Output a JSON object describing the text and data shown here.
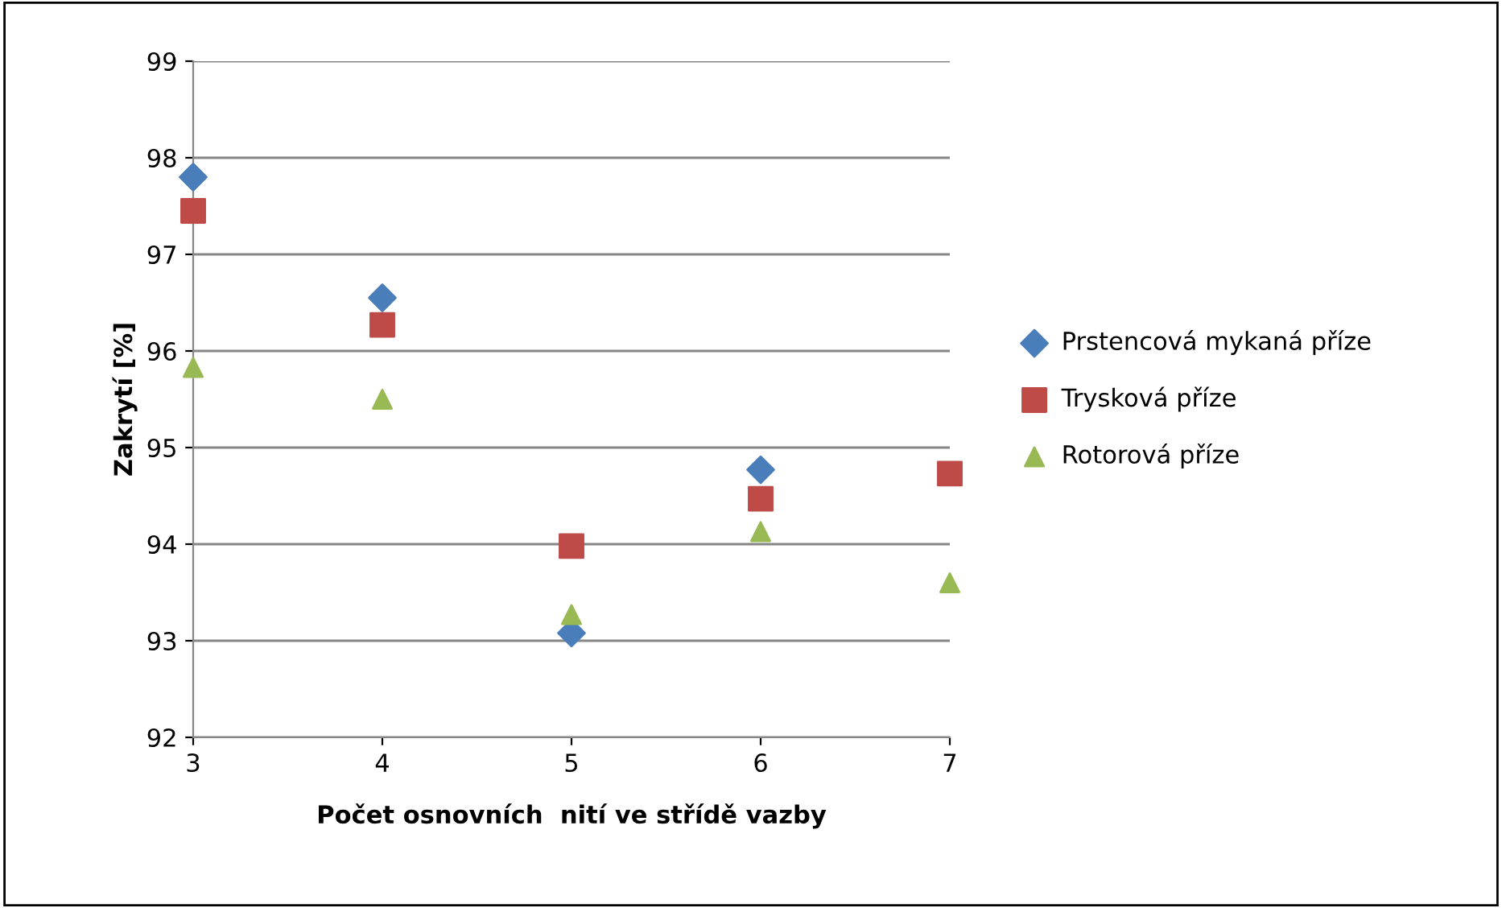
{
  "chart_data": {
    "type": "scatter",
    "xlabel": "Počet osnovních  nití ve střídě vazby",
    "ylabel": "Zakrytí [%]",
    "x": [
      3,
      4,
      5,
      6,
      7
    ],
    "series": [
      {
        "name": "Prstencová mykaná příze",
        "color": "#4a7ebb",
        "marker": "diamond",
        "values": [
          97.8,
          96.55,
          93.08,
          94.77,
          null
        ]
      },
      {
        "name": "Trysková příze",
        "color": "#be4b48",
        "marker": "square",
        "values": [
          97.45,
          96.27,
          93.98,
          94.47,
          94.73
        ]
      },
      {
        "name": "Rotorová příze",
        "color": "#98b954",
        "marker": "triangle",
        "values": [
          95.83,
          95.5,
          93.27,
          94.13,
          93.6
        ]
      }
    ],
    "xlim": [
      3,
      7
    ],
    "xticks": [
      3,
      4,
      5,
      6,
      7
    ],
    "ylim": [
      92,
      99
    ],
    "yticks": [
      92,
      93,
      94,
      95,
      96,
      97,
      98,
      99
    ],
    "grid": "y",
    "legend": "right"
  }
}
